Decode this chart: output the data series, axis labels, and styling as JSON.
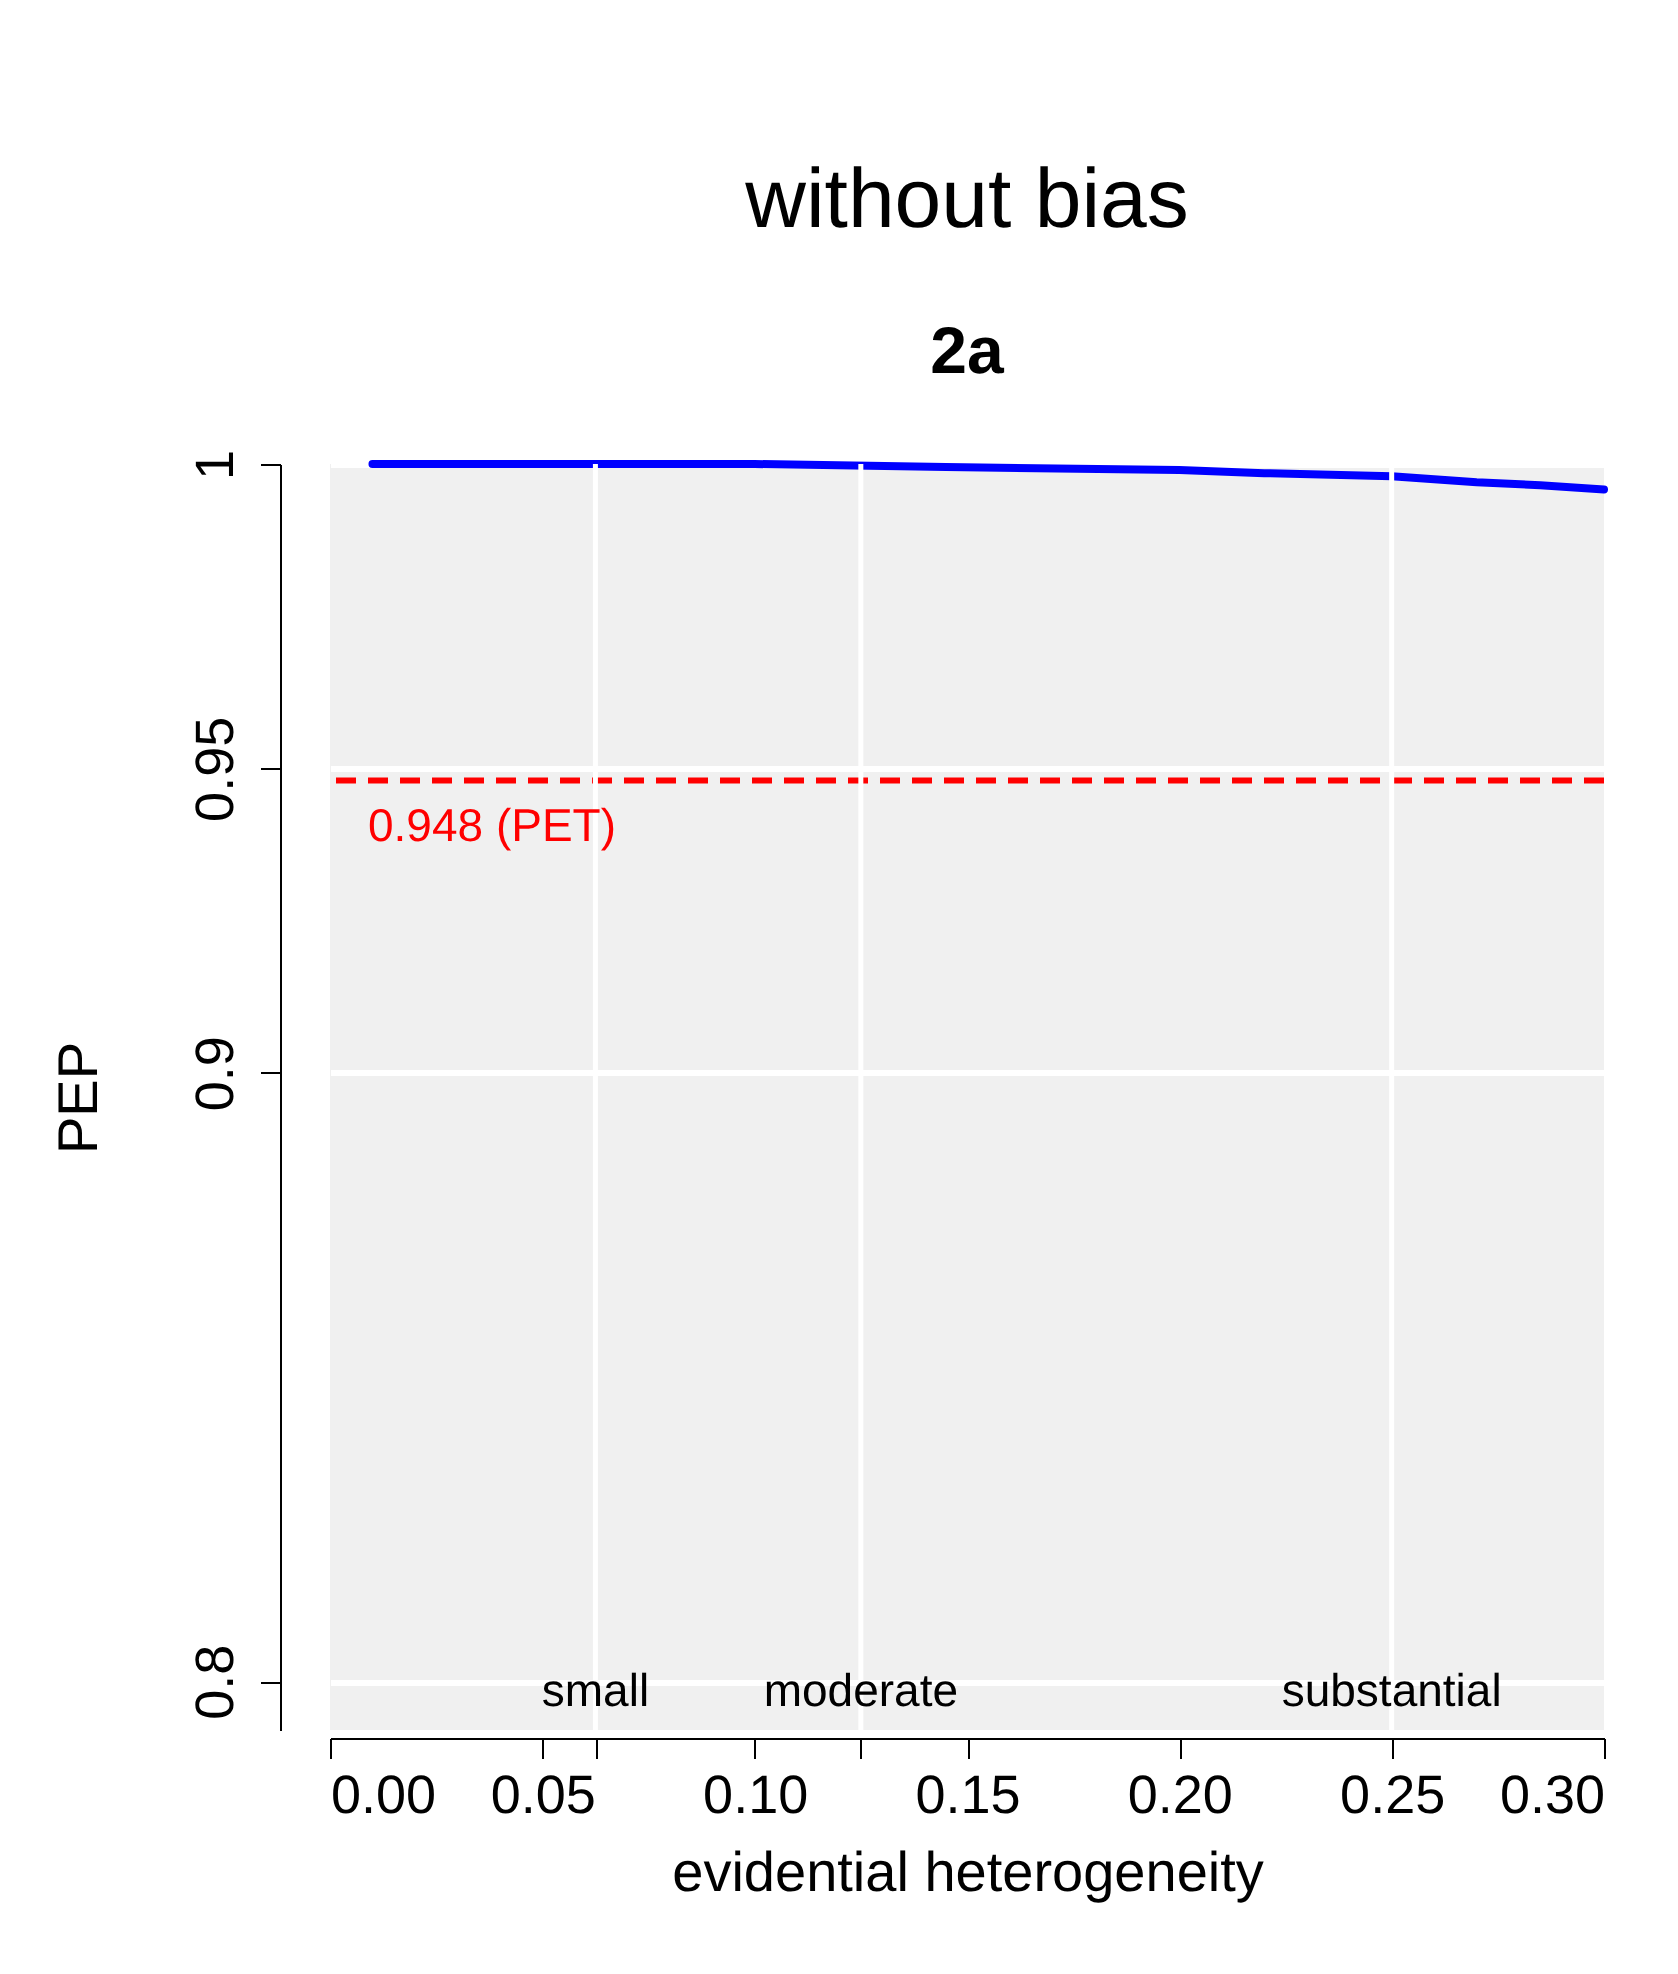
{
  "chart_data": {
    "type": "line",
    "title": "without bias",
    "subtitle": "2a",
    "xlabel": "evidential heterogeneity",
    "ylabel": "PEP",
    "x": [
      0.01,
      0.05,
      0.1,
      0.145,
      0.2,
      0.22,
      0.25,
      0.27,
      0.285,
      0.3
    ],
    "series": [
      {
        "color": "#0000ff",
        "values": [
          1.0,
          1.0,
          1.0,
          0.9995,
          0.999,
          0.9985,
          0.998,
          0.997,
          0.9965,
          0.9958
        ]
      }
    ],
    "xlim": [
      0,
      0.3
    ],
    "xticks": [
      {
        "value": 0,
        "label": "0.00"
      },
      0.05,
      {
        "value": 0.0625,
        "label": null
      },
      {
        "value": 0.1,
        "label": "0.10"
      },
      {
        "value": 0.125,
        "label": null
      },
      0.15,
      {
        "value": 0.2,
        "label": "0.20"
      },
      0.25,
      {
        "value": 0.3,
        "label": "0.30"
      }
    ],
    "ylim": [
      0.792,
      1
    ],
    "yticks": [
      0.8,
      0.9,
      0.95,
      1
    ],
    "grid": "y",
    "ref_lines": [
      {
        "axis": "y",
        "value": 0.948,
        "label": "0.948 (PET)",
        "color": "#ff0000",
        "line_style": "dashed"
      },
      {
        "axis": "x",
        "value": 0.0625,
        "label": "small",
        "color": "#ffffff"
      },
      {
        "axis": "x",
        "value": 0.125,
        "label": "moderate",
        "color": "#ffffff"
      },
      {
        "axis": "x",
        "value": 0.25,
        "label": "substantial",
        "color": "#ffffff"
      }
    ],
    "line_style": "solid"
  }
}
